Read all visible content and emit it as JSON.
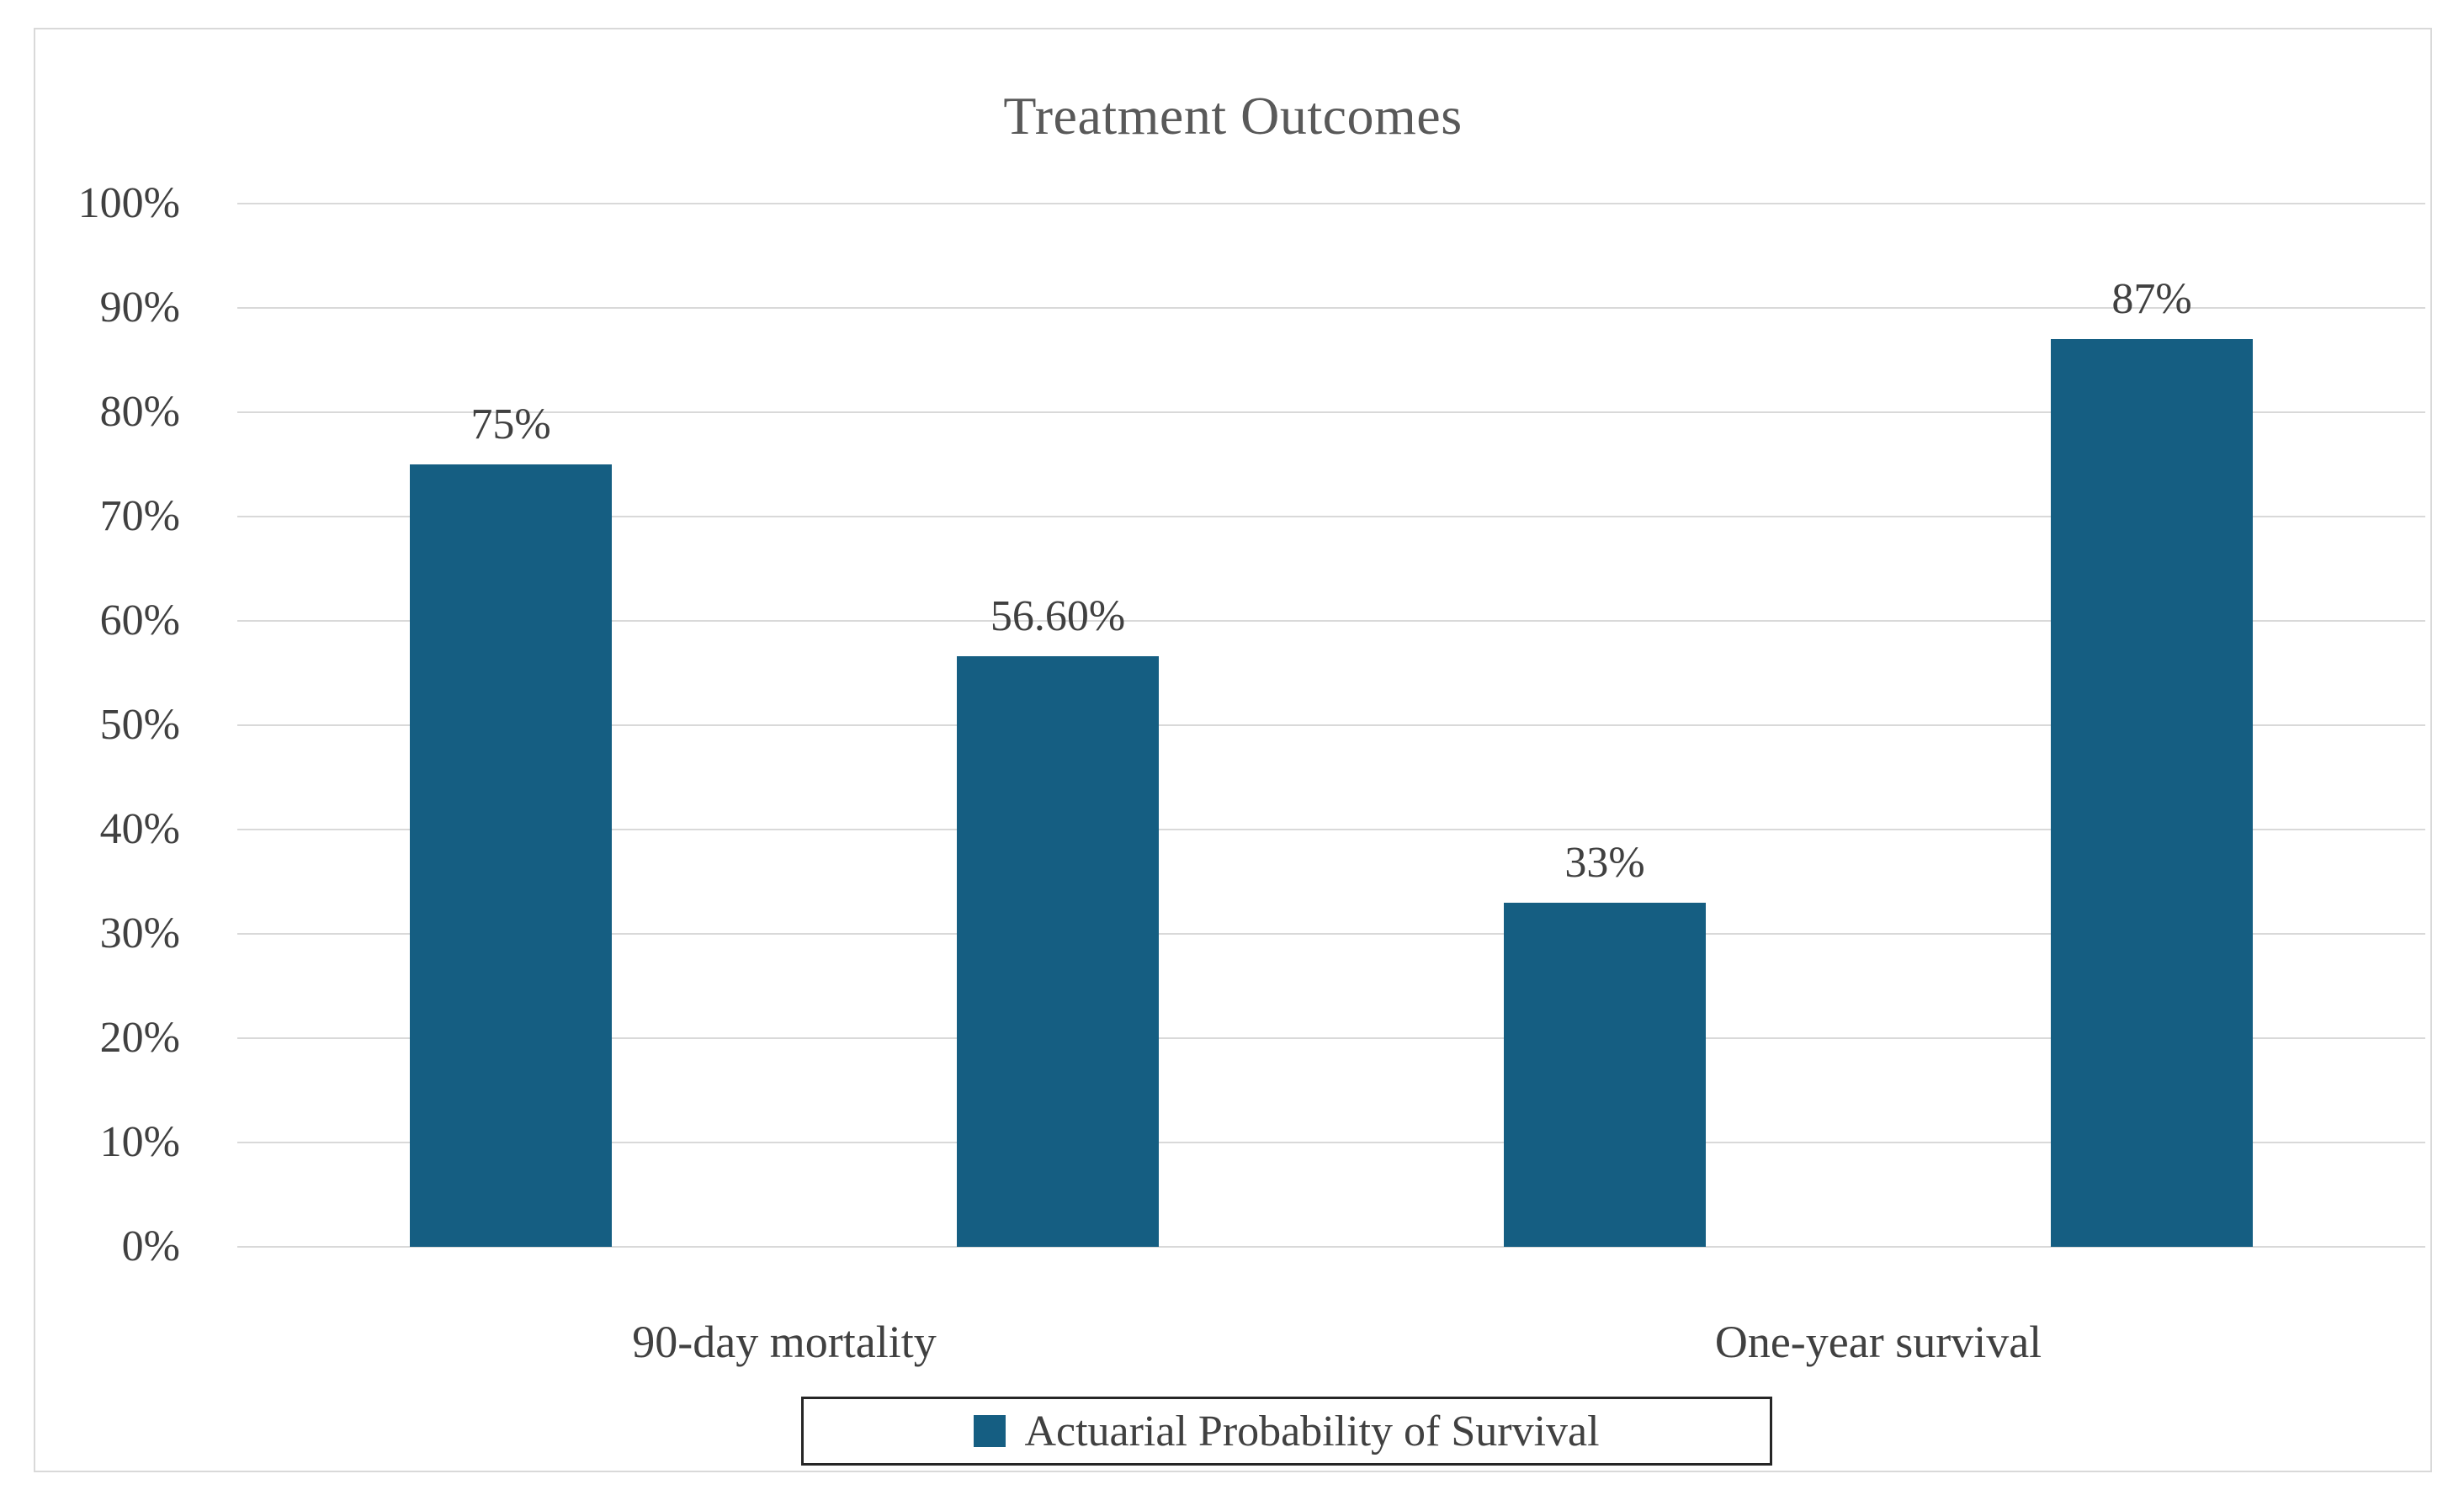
{
  "chart_data": {
    "type": "bar",
    "title": "Treatment Outcomes",
    "categories": [
      "90-day mortality",
      "One-year survival"
    ],
    "series": [
      {
        "name": "Actuarial Probability of Survival",
        "points": [
          {
            "category": "90-day mortality",
            "value": 75,
            "label": "75%"
          },
          {
            "category": "90-day mortality",
            "value": 56.6,
            "label": "56.60%"
          },
          {
            "category": "One-year survival",
            "value": 33,
            "label": "33%"
          },
          {
            "category": "One-year survival",
            "value": 87,
            "label": "87%"
          }
        ]
      }
    ],
    "y_axis": {
      "min": 0,
      "max": 100,
      "step": 10,
      "tick_labels": [
        "0%",
        "10%",
        "20%",
        "30%",
        "40%",
        "50%",
        "60%",
        "70%",
        "80%",
        "90%",
        "100%"
      ]
    },
    "legend": {
      "position": "bottom",
      "entries": [
        "Actuarial Probability of Survival"
      ]
    },
    "grid": true,
    "xlabel": "",
    "ylabel": "",
    "colors": {
      "bar_fill": "#155E82",
      "gridline": "#D9D9D9",
      "chart_border": "#D9D9D9",
      "title_text": "#595959",
      "label_text": "#404040",
      "legend_border": "#262626",
      "background": "#FFFFFF"
    }
  }
}
